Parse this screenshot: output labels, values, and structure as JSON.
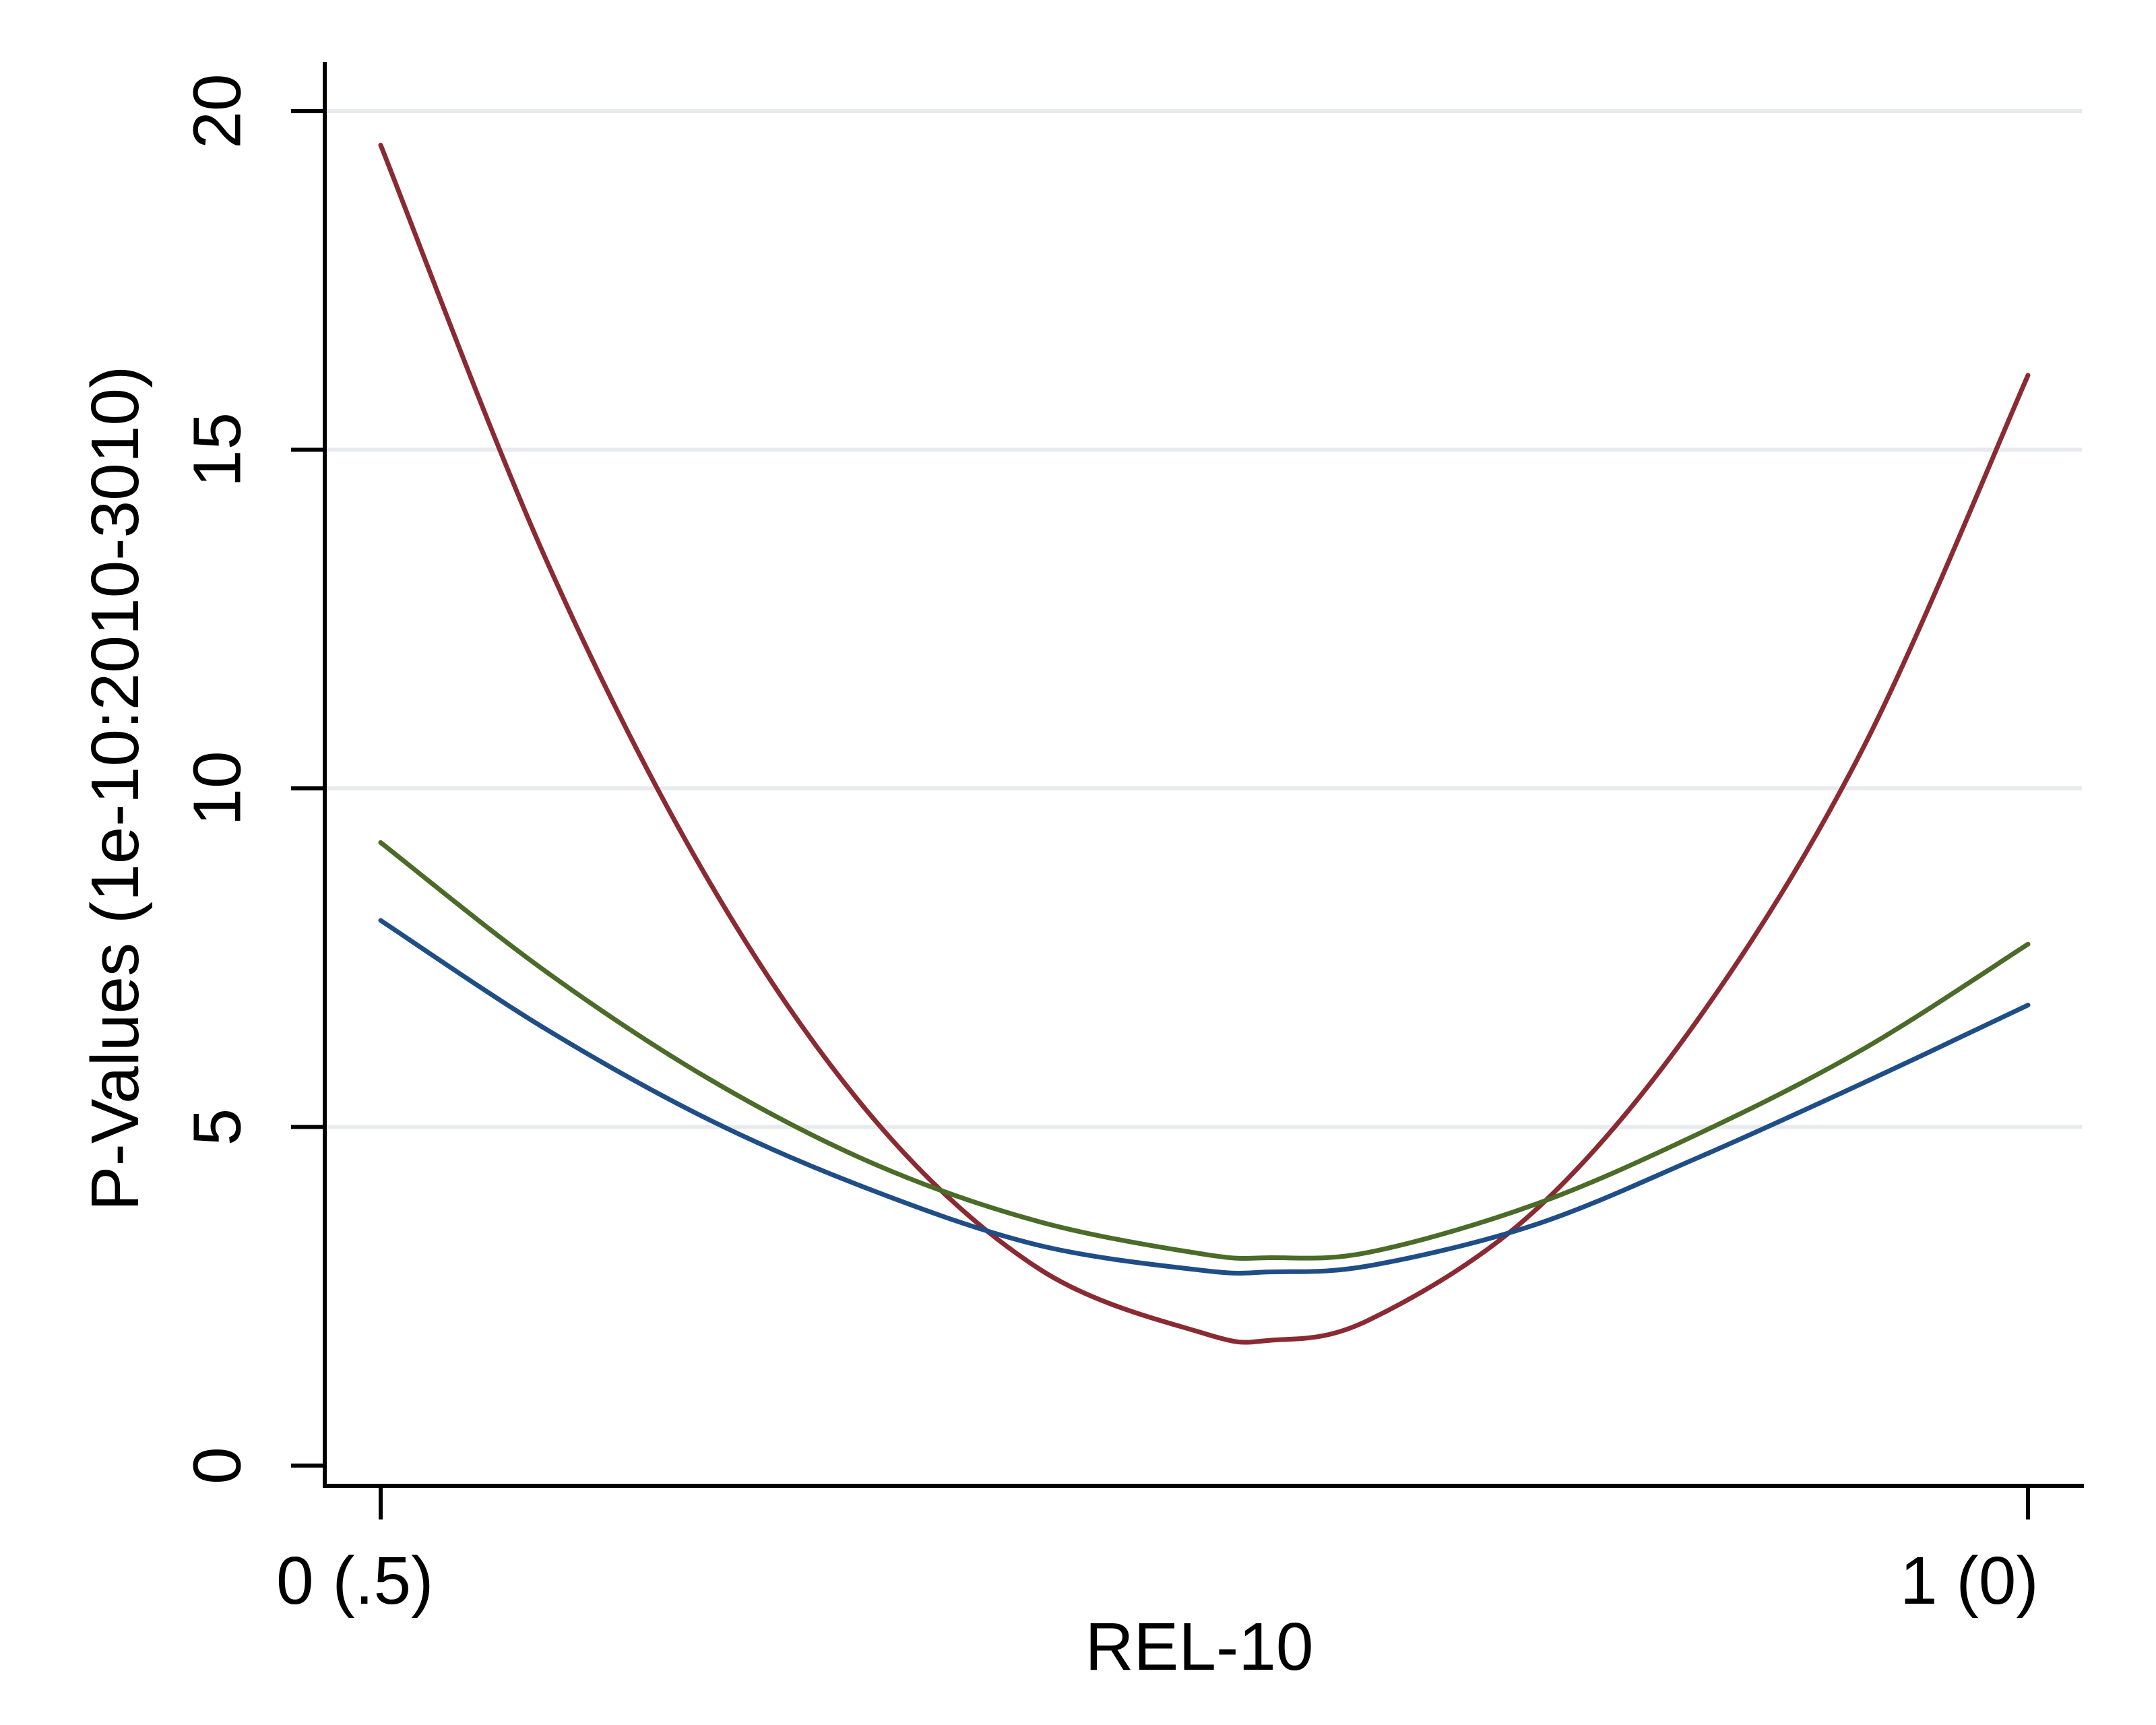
{
  "chart_data": {
    "type": "line",
    "title": "",
    "xlabel": "REL-10",
    "ylabel": "P-Values (1e-10:2010-3010)",
    "xlim": [
      0,
      1
    ],
    "ylim": [
      0,
      20
    ],
    "grid": true,
    "legend": "none",
    "y_ticks": [
      0,
      5,
      10,
      15,
      20
    ],
    "y_tick_labels": [
      "0",
      "5",
      "10",
      "15",
      "20"
    ],
    "x_ticks": [
      0,
      1
    ],
    "x_tick_labels": [
      "0  (.5)",
      "1  (0)"
    ],
    "x": [
      0,
      0.1,
      0.2,
      0.3,
      0.4,
      0.5,
      0.54,
      0.6,
      0.7,
      0.8,
      0.9,
      1.0
    ],
    "series": [
      {
        "color": "#8a2a32",
        "values": [
          19.5,
          13.4,
          8.6,
          5.1,
          2.9,
          1.95,
          1.85,
          2.15,
          3.75,
          6.6,
          10.6,
          16.1
        ]
      },
      {
        "color": "#4b6b28",
        "values": [
          9.2,
          7.3,
          5.7,
          4.45,
          3.6,
          3.12,
          3.07,
          3.15,
          3.85,
          4.9,
          6.15,
          7.7
        ]
      },
      {
        "color": "#1f4e86",
        "values": [
          8.05,
          6.45,
          5.1,
          4.05,
          3.25,
          2.88,
          2.86,
          2.95,
          3.55,
          4.55,
          5.65,
          6.8
        ]
      }
    ]
  }
}
